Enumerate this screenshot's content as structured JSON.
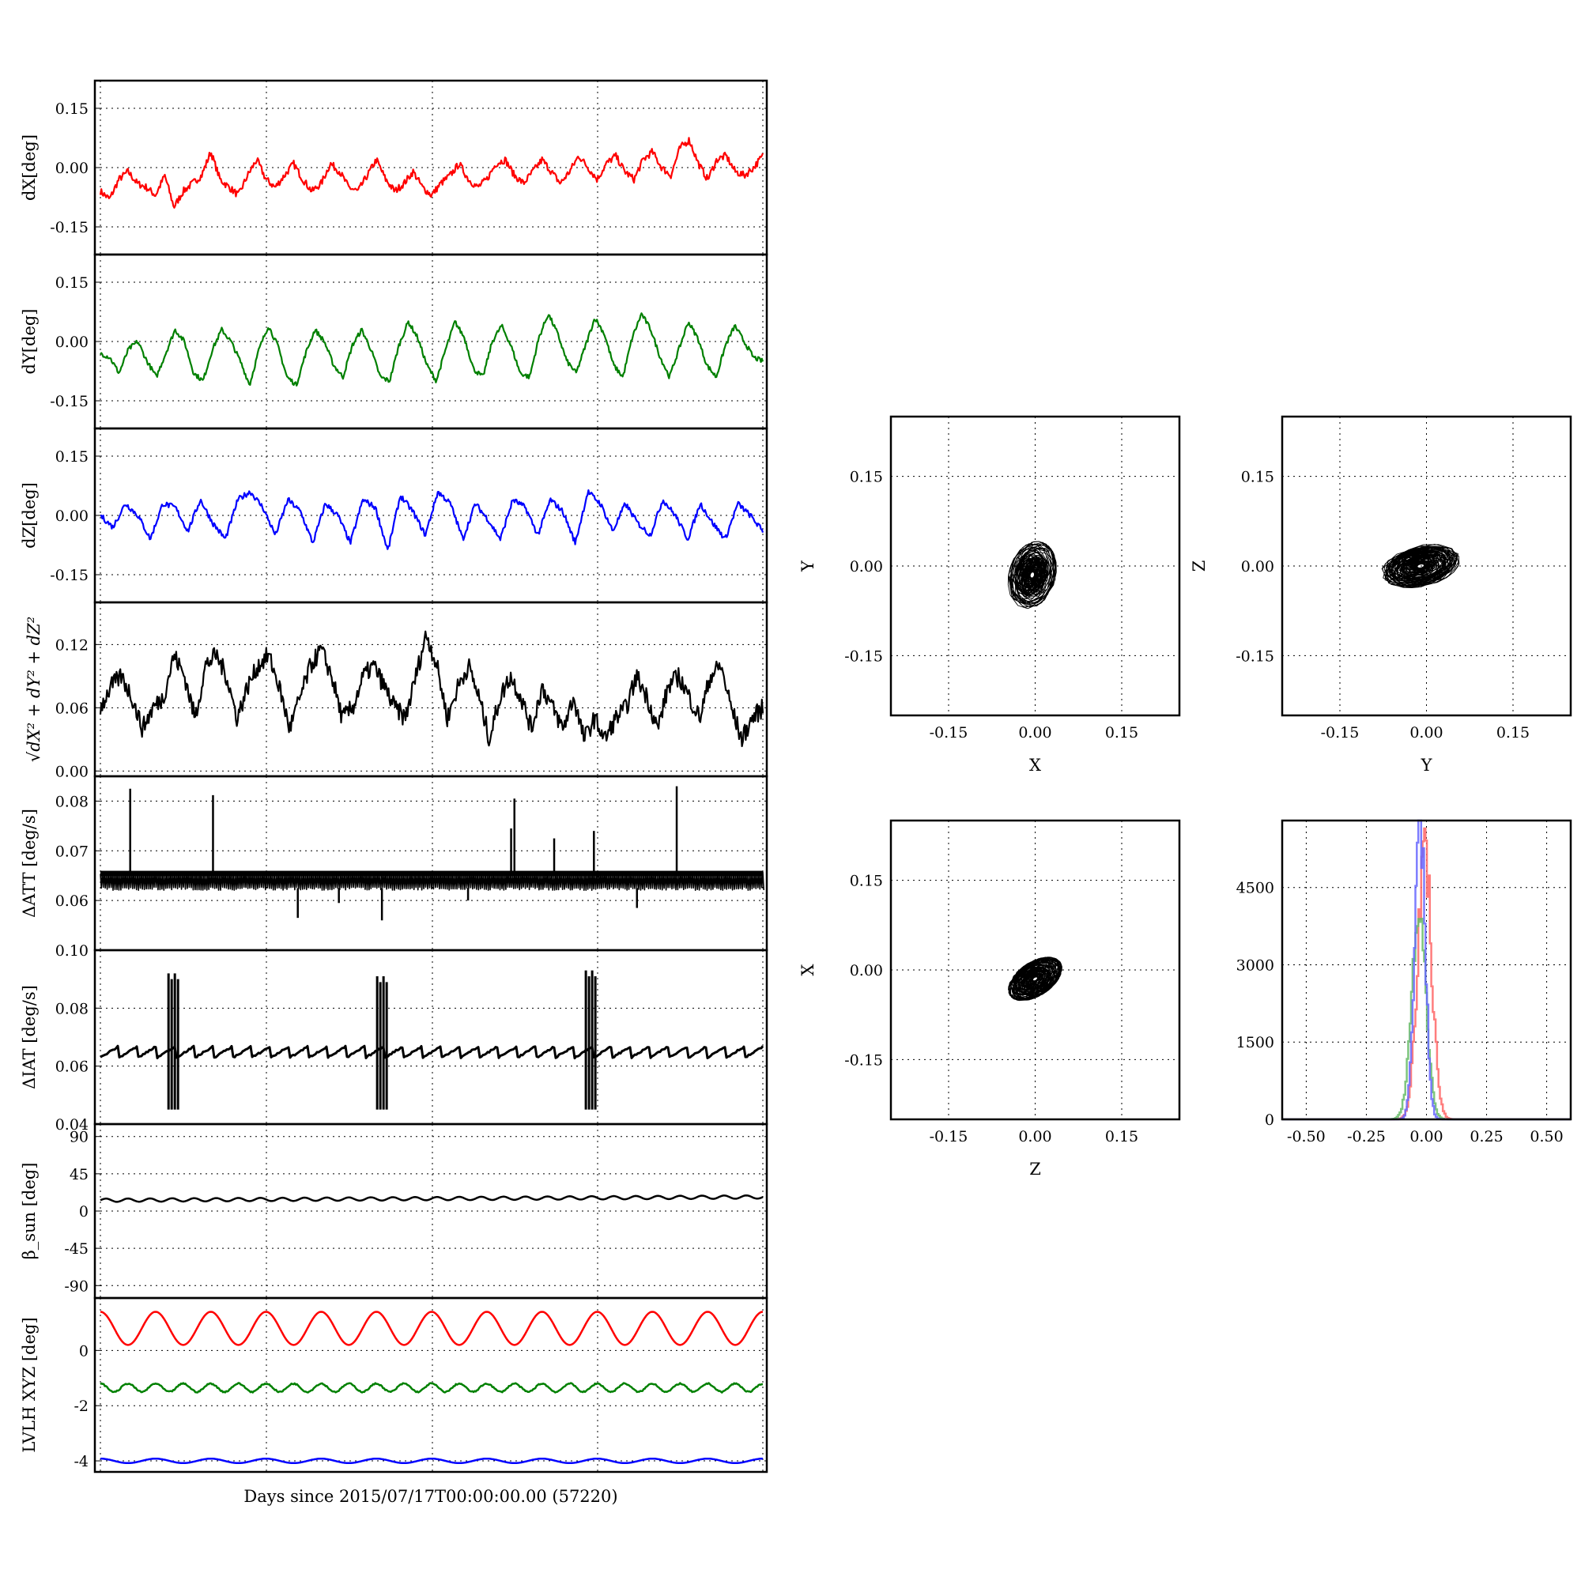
{
  "xlabel": "Days since 2015/07/17T00:00:00.00 (57220)",
  "colors": {
    "red": "#ff0000",
    "green": "#008000",
    "blue": "#0000ff",
    "black": "#000000",
    "hist_red": "#ff6666",
    "hist_green": "#66bb66",
    "hist_blue": "#6666ff"
  },
  "chart_data": [
    {
      "type": "line",
      "title": "",
      "xlabel": "",
      "ylabel": "dX[deg]",
      "ylim": [
        -0.22,
        0.22
      ],
      "yticks": [
        "0.15",
        "0.00",
        "-0.15"
      ],
      "ytick_values": [
        0.15,
        0.0,
        -0.15
      ],
      "grid": true,
      "series": [
        {
          "color": "#ff0000",
          "y": [
            -0.06,
            -0.08,
            -0.03,
            -0.01,
            -0.04,
            -0.05,
            -0.07,
            -0.02,
            -0.1,
            -0.06,
            -0.04,
            -0.02,
            0.04,
            -0.03,
            -0.05,
            -0.07,
            -0.02,
            0.02,
            -0.03,
            -0.05,
            -0.02,
            0.01,
            -0.03,
            -0.06,
            -0.04,
            0.01,
            -0.01,
            -0.05,
            -0.06,
            -0.02,
            0.02,
            -0.03,
            -0.06,
            -0.04,
            -0.01,
            -0.05,
            -0.07,
            -0.04,
            -0.02,
            0.01,
            -0.03,
            -0.05,
            -0.03,
            0.01,
            0.02,
            -0.02,
            -0.04,
            -0.01,
            0.02,
            -0.01,
            -0.04,
            -0.01,
            0.03,
            0.0,
            -0.03,
            0.01,
            0.03,
            -0.01,
            -0.03,
            0.02,
            0.04,
            0.0,
            -0.02,
            0.05,
            0.07,
            0.01,
            -0.03,
            0.02,
            0.03,
            -0.01,
            -0.02,
            0.0,
            0.03
          ]
        }
      ]
    },
    {
      "type": "line",
      "title": "",
      "xlabel": "",
      "ylabel": "dY[deg]",
      "ylim": [
        -0.22,
        0.22
      ],
      "yticks": [
        "0.15",
        "0.00",
        "-0.15"
      ],
      "ytick_values": [
        0.15,
        0.0,
        -0.15
      ],
      "grid": true,
      "series": [
        {
          "color": "#008000",
          "y": [
            -0.03,
            -0.04,
            -0.08,
            -0.02,
            0.0,
            -0.05,
            -0.09,
            -0.03,
            0.03,
            0.0,
            -0.08,
            -0.1,
            -0.02,
            0.03,
            0.0,
            -0.05,
            -0.11,
            -0.02,
            0.04,
            -0.01,
            -0.09,
            -0.11,
            -0.03,
            0.03,
            0.0,
            -0.06,
            -0.09,
            -0.01,
            0.03,
            -0.02,
            -0.09,
            -0.1,
            -0.01,
            0.05,
            0.01,
            -0.06,
            -0.1,
            -0.02,
            0.05,
            0.01,
            -0.07,
            -0.09,
            0.0,
            0.04,
            -0.01,
            -0.08,
            -0.09,
            0.01,
            0.07,
            0.02,
            -0.05,
            -0.08,
            -0.01,
            0.06,
            0.02,
            -0.06,
            -0.09,
            0.01,
            0.07,
            0.03,
            -0.04,
            -0.09,
            -0.02,
            0.05,
            0.01,
            -0.06,
            -0.09,
            -0.01,
            0.04,
            0.0,
            -0.04,
            -0.05
          ]
        }
      ]
    },
    {
      "type": "line",
      "title": "",
      "xlabel": "",
      "ylabel": "dZ[deg]",
      "ylim": [
        -0.22,
        0.22
      ],
      "yticks": [
        "0.15",
        "0.00",
        "-0.15"
      ],
      "ytick_values": [
        0.15,
        0.0,
        -0.15
      ],
      "grid": true,
      "series": [
        {
          "color": "#0000ff",
          "y": [
            0.0,
            -0.03,
            0.03,
            0.0,
            -0.06,
            0.03,
            0.02,
            -0.04,
            0.04,
            -0.02,
            -0.06,
            0.04,
            0.06,
            0.02,
            -0.05,
            0.04,
            0.01,
            -0.07,
            0.03,
            0.0,
            -0.07,
            0.04,
            0.02,
            -0.09,
            0.05,
            0.01,
            -0.05,
            0.06,
            0.03,
            -0.06,
            0.03,
            -0.01,
            -0.06,
            0.04,
            0.02,
            -0.05,
            0.04,
            0.01,
            -0.07,
            0.06,
            0.03,
            -0.04,
            0.03,
            -0.02,
            -0.05,
            0.04,
            0.0,
            -0.06,
            0.03,
            -0.02,
            -0.06,
            0.03,
            0.0,
            -0.04
          ]
        }
      ]
    },
    {
      "type": "line",
      "title": "",
      "xlabel": "",
      "ylabel": "sqrt(dX^2 + dY^2 + dZ^2)",
      "ylim": [
        -0.005,
        0.16
      ],
      "yticks": [
        "0.12",
        "0.06",
        "0.00"
      ],
      "ytick_values": [
        0.12,
        0.06,
        0.0
      ],
      "grid": true,
      "series": [
        {
          "color": "#000000",
          "y": [
            0.06,
            0.08,
            0.09,
            0.07,
            0.04,
            0.06,
            0.07,
            0.11,
            0.09,
            0.05,
            0.1,
            0.11,
            0.09,
            0.05,
            0.08,
            0.1,
            0.11,
            0.08,
            0.04,
            0.07,
            0.1,
            0.115,
            0.09,
            0.05,
            0.06,
            0.09,
            0.1,
            0.08,
            0.06,
            0.05,
            0.09,
            0.13,
            0.1,
            0.05,
            0.08,
            0.1,
            0.07,
            0.03,
            0.07,
            0.09,
            0.07,
            0.04,
            0.08,
            0.06,
            0.04,
            0.07,
            0.03,
            0.05,
            0.03,
            0.05,
            0.06,
            0.09,
            0.07,
            0.04,
            0.08,
            0.09,
            0.07,
            0.05,
            0.09,
            0.1,
            0.06,
            0.03,
            0.05,
            0.06
          ]
        }
      ]
    },
    {
      "type": "line",
      "title": "",
      "xlabel": "",
      "ylabel": "ΔATT [deg/s]",
      "ylim": [
        0.05,
        0.085
      ],
      "yticks": [
        "0.08",
        "0.07",
        "0.06"
      ],
      "ytick_values": [
        0.08,
        0.07,
        0.06
      ],
      "grid": true,
      "baseline": [
        0.0625,
        0.0655
      ],
      "series": [
        {
          "color": "#000000",
          "spikes_up": [
            [
              0.045,
              0.0825
            ],
            [
              0.17,
              0.0812
            ],
            [
              0.62,
              0.0745
            ],
            [
              0.625,
              0.0805
            ],
            [
              0.685,
              0.0725
            ],
            [
              0.745,
              0.074
            ],
            [
              0.87,
              0.083
            ]
          ],
          "spikes_down": [
            [
              0.298,
              0.0565
            ],
            [
              0.36,
              0.0595
            ],
            [
              0.425,
              0.056
            ],
            [
              0.555,
              0.06
            ],
            [
              0.81,
              0.0585
            ]
          ]
        }
      ]
    },
    {
      "type": "line",
      "title": "",
      "xlabel": "",
      "ylabel": "ΔIAT [deg/s]",
      "ylim": [
        0.04,
        0.1
      ],
      "yticks": [
        "0.10",
        "0.08",
        "0.06",
        "0.04"
      ],
      "ytick_values": [
        0.1,
        0.08,
        0.06,
        0.04
      ],
      "grid": true,
      "series": [
        {
          "color": "#000000",
          "sawtooth": [
            0.063,
            0.067
          ],
          "bursts": [
            [
              0.11,
              0.045,
              0.092
            ],
            [
              0.425,
              0.045,
              0.091
            ],
            [
              0.74,
              0.045,
              0.093
            ]
          ]
        }
      ]
    },
    {
      "type": "line",
      "title": "",
      "xlabel": "",
      "ylabel": "β_sun [deg]",
      "ylim": [
        -105,
        105
      ],
      "yticks": [
        "90",
        "45",
        "0",
        "-45",
        "-90"
      ],
      "ytick_values": [
        90,
        45,
        0,
        -45,
        -90
      ],
      "grid": true,
      "series": [
        {
          "color": "#000000",
          "start": 13,
          "end": 17,
          "wiggle": 2
        }
      ]
    },
    {
      "type": "line",
      "title": "",
      "xlabel": "Days since 2015/07/17T00:00:00.00 (57220)",
      "ylabel": "LVLH XYZ [deg]",
      "ylim": [
        -4.4,
        1.9
      ],
      "yticks": [
        "0",
        "-2",
        "-4"
      ],
      "ytick_values": [
        0,
        -2,
        -4
      ],
      "grid": true,
      "series": [
        {
          "color": "#ff0000",
          "mean": 0.8,
          "amp": 0.6,
          "cycles": 12
        },
        {
          "color": "#008000",
          "mean": -1.35,
          "amp": 0.15,
          "cycles": 24
        },
        {
          "color": "#0000ff",
          "mean": -4.0,
          "amp": 0.08,
          "cycles": 12
        }
      ]
    },
    {
      "type": "scatter",
      "title": "",
      "xlabel": "X",
      "ylabel": "Y",
      "xlim": [
        -0.25,
        0.25
      ],
      "ylim": [
        -0.25,
        0.25
      ],
      "xticks": [
        "-0.15",
        "0.00",
        "0.15"
      ],
      "yticks": [
        "0.15",
        "0.00",
        "-0.15"
      ],
      "grid": true,
      "cloud": {
        "cx": -0.005,
        "cy": -0.015,
        "sx": 0.035,
        "sy": 0.05,
        "tilt": -0.3
      }
    },
    {
      "type": "scatter",
      "title": "",
      "xlabel": "Y",
      "ylabel": "Z",
      "xlim": [
        -0.25,
        0.25
      ],
      "ylim": [
        -0.25,
        0.25
      ],
      "xticks": [
        "-0.15",
        "0.00",
        "0.15"
      ],
      "yticks": [
        "0.15",
        "0.00",
        "-0.15"
      ],
      "grid": true,
      "cloud": {
        "cx": -0.01,
        "cy": 0.0,
        "sx": 0.06,
        "sy": 0.03,
        "tilt": 0.2
      }
    },
    {
      "type": "scatter",
      "title": "",
      "xlabel": "Z",
      "ylabel": "X",
      "xlim": [
        -0.25,
        0.25
      ],
      "ylim": [
        -0.25,
        0.25
      ],
      "xticks": [
        "-0.15",
        "0.00",
        "0.15"
      ],
      "yticks": [
        "0.15",
        "0.00",
        "-0.15"
      ],
      "grid": true,
      "cloud": {
        "cx": 0.0,
        "cy": -0.015,
        "sx": 0.045,
        "sy": 0.025,
        "tilt": 0.55
      }
    },
    {
      "type": "histogram",
      "title": "",
      "xlabel": "",
      "ylabel": "",
      "xlim": [
        -0.6,
        0.6
      ],
      "ylim": [
        0,
        5800
      ],
      "xticks": [
        "-0.50",
        "-0.25",
        "0.00",
        "0.25",
        "0.50"
      ],
      "yticks": [
        "4500",
        "3000",
        "1500",
        "0"
      ],
      "grid": true,
      "series": [
        {
          "color": "#ff6666",
          "center": -0.01,
          "width": 0.03,
          "peak": 5000
        },
        {
          "color": "#66bb66",
          "center": -0.035,
          "width": 0.03,
          "peak": 3800
        },
        {
          "color": "#6666ff",
          "center": -0.03,
          "width": 0.022,
          "peak": 5800
        }
      ]
    }
  ]
}
